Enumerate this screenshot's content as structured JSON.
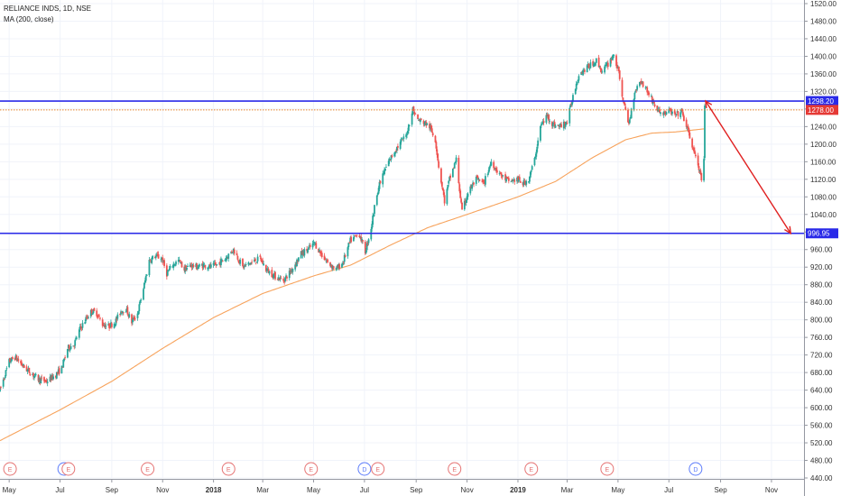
{
  "header": {
    "symbol_line": "RELIANCE INDS, 1D, NSE",
    "indicator_line": "MA (200, close)"
  },
  "colors": {
    "up_candle": "#26a69a",
    "down_candle": "#ef5350",
    "ma_line": "#f7a35c",
    "hline": "#2a2ae8",
    "dotted_line": "#e8842a",
    "arrow": "#e02020",
    "price_tag_current": "#e53935",
    "price_tag_blue": "#2a2ae8",
    "event_e": "#e57373",
    "event_d": "#5c7cfa"
  },
  "chart_data": {
    "type": "candlestick",
    "title": "RELIANCE INDS, 1D, NSE",
    "ylim": [
      440,
      1520
    ],
    "y_ticks": [
      "1520.00",
      "1480.00",
      "1440.00",
      "1400.00",
      "1360.00",
      "1320.00",
      "1280.00",
      "1240.00",
      "1200.00",
      "1160.00",
      "1120.00",
      "1080.00",
      "1040.00",
      "1000.00",
      "960.00",
      "920.00",
      "880.00",
      "840.00",
      "800.00",
      "760.00",
      "720.00",
      "680.00",
      "640.00",
      "600.00",
      "560.00",
      "520.00",
      "480.00",
      "440.00"
    ],
    "x_range": [
      "2017-04-20",
      "2019-12-10"
    ],
    "x_ticks": [
      {
        "label": "May",
        "date": "2017-05-01"
      },
      {
        "label": "Jul",
        "date": "2017-07-01"
      },
      {
        "label": "Sep",
        "date": "2017-09-01"
      },
      {
        "label": "Nov",
        "date": "2017-11-01"
      },
      {
        "label": "2018",
        "date": "2018-01-01"
      },
      {
        "label": "Mar",
        "date": "2018-03-01"
      },
      {
        "label": "May",
        "date": "2018-05-01"
      },
      {
        "label": "Jul",
        "date": "2018-07-01"
      },
      {
        "label": "Sep",
        "date": "2018-09-01"
      },
      {
        "label": "Nov",
        "date": "2018-11-01"
      },
      {
        "label": "2019",
        "date": "2019-01-01"
      },
      {
        "label": "Mar",
        "date": "2019-03-01"
      },
      {
        "label": "May",
        "date": "2019-05-01"
      },
      {
        "label": "Jul",
        "date": "2019-07-01"
      },
      {
        "label": "Sep",
        "date": "2019-09-01"
      },
      {
        "label": "Nov",
        "date": "2019-11-01"
      }
    ],
    "price_anchors": [
      [
        "2017-04-20",
        640
      ],
      [
        "2017-05-01",
        705
      ],
      [
        "2017-05-08",
        715
      ],
      [
        "2017-05-20",
        690
      ],
      [
        "2017-06-05",
        665
      ],
      [
        "2017-06-15",
        660
      ],
      [
        "2017-06-26",
        675
      ],
      [
        "2017-07-03",
        690
      ],
      [
        "2017-07-10",
        735
      ],
      [
        "2017-07-18",
        745
      ],
      [
        "2017-07-25",
        780
      ],
      [
        "2017-08-02",
        805
      ],
      [
        "2017-08-08",
        820
      ],
      [
        "2017-08-14",
        815
      ],
      [
        "2017-08-21",
        790
      ],
      [
        "2017-08-28",
        785
      ],
      [
        "2017-09-05",
        795
      ],
      [
        "2017-09-12",
        820
      ],
      [
        "2017-09-18",
        825
      ],
      [
        "2017-09-25",
        795
      ],
      [
        "2017-10-02",
        815
      ],
      [
        "2017-10-10",
        880
      ],
      [
        "2017-10-16",
        935
      ],
      [
        "2017-10-23",
        945
      ],
      [
        "2017-10-31",
        940
      ],
      [
        "2017-11-06",
        905
      ],
      [
        "2017-11-13",
        925
      ],
      [
        "2017-11-20",
        935
      ],
      [
        "2017-11-27",
        915
      ],
      [
        "2017-12-05",
        925
      ],
      [
        "2017-12-12",
        920
      ],
      [
        "2017-12-20",
        925
      ],
      [
        "2017-12-28",
        920
      ],
      [
        "2018-01-05",
        925
      ],
      [
        "2018-01-15",
        940
      ],
      [
        "2018-01-25",
        960
      ],
      [
        "2018-02-05",
        920
      ],
      [
        "2018-02-15",
        930
      ],
      [
        "2018-02-26",
        940
      ],
      [
        "2018-03-05",
        915
      ],
      [
        "2018-03-15",
        900
      ],
      [
        "2018-03-26",
        890
      ],
      [
        "2018-04-05",
        915
      ],
      [
        "2018-04-16",
        950
      ],
      [
        "2018-04-24",
        960
      ],
      [
        "2018-05-02",
        975
      ],
      [
        "2018-05-10",
        950
      ],
      [
        "2018-05-18",
        930
      ],
      [
        "2018-05-28",
        915
      ],
      [
        "2018-06-05",
        930
      ],
      [
        "2018-06-14",
        980
      ],
      [
        "2018-06-25",
        995
      ],
      [
        "2018-07-02",
        955
      ],
      [
        "2018-07-09",
        1010
      ],
      [
        "2018-07-16",
        1090
      ],
      [
        "2018-07-23",
        1130
      ],
      [
        "2018-07-30",
        1160
      ],
      [
        "2018-08-08",
        1190
      ],
      [
        "2018-08-20",
        1220
      ],
      [
        "2018-08-28",
        1280
      ],
      [
        "2018-09-03",
        1255
      ],
      [
        "2018-09-10",
        1250
      ],
      [
        "2018-09-17",
        1240
      ],
      [
        "2018-09-24",
        1210
      ],
      [
        "2018-09-28",
        1150
      ],
      [
        "2018-10-05",
        1070
      ],
      [
        "2018-10-11",
        1120
      ],
      [
        "2018-10-19",
        1165
      ],
      [
        "2018-10-26",
        1045
      ],
      [
        "2018-11-02",
        1090
      ],
      [
        "2018-11-12",
        1120
      ],
      [
        "2018-11-21",
        1110
      ],
      [
        "2018-11-30",
        1160
      ],
      [
        "2018-12-07",
        1140
      ],
      [
        "2018-12-14",
        1125
      ],
      [
        "2018-12-21",
        1115
      ],
      [
        "2018-12-31",
        1120
      ],
      [
        "2019-01-07",
        1110
      ],
      [
        "2019-01-14",
        1120
      ],
      [
        "2019-01-21",
        1165
      ],
      [
        "2019-01-28",
        1240
      ],
      [
        "2019-02-05",
        1265
      ],
      [
        "2019-02-12",
        1245
      ],
      [
        "2019-02-20",
        1240
      ],
      [
        "2019-03-01",
        1250
      ],
      [
        "2019-03-08",
        1310
      ],
      [
        "2019-03-15",
        1360
      ],
      [
        "2019-03-22",
        1370
      ],
      [
        "2019-03-29",
        1380
      ],
      [
        "2019-04-05",
        1390
      ],
      [
        "2019-04-12",
        1365
      ],
      [
        "2019-04-20",
        1385
      ],
      [
        "2019-04-26",
        1405
      ],
      [
        "2019-05-02",
        1360
      ],
      [
        "2019-05-08",
        1290
      ],
      [
        "2019-05-14",
        1245
      ],
      [
        "2019-05-21",
        1320
      ],
      [
        "2019-05-28",
        1345
      ],
      [
        "2019-06-04",
        1325
      ],
      [
        "2019-06-11",
        1300
      ],
      [
        "2019-06-18",
        1275
      ],
      [
        "2019-06-25",
        1270
      ],
      [
        "2019-07-02",
        1275
      ],
      [
        "2019-07-09",
        1265
      ],
      [
        "2019-07-16",
        1275
      ],
      [
        "2019-07-23",
        1235
      ],
      [
        "2019-07-30",
        1190
      ],
      [
        "2019-08-05",
        1150
      ],
      [
        "2019-08-09",
        1120
      ],
      [
        "2019-08-12",
        1160
      ],
      [
        "2019-08-13",
        1288
      ]
    ],
    "ma200": [
      [
        "2017-04-20",
        525
      ],
      [
        "2017-07-01",
        595
      ],
      [
        "2017-09-01",
        660
      ],
      [
        "2017-11-01",
        735
      ],
      [
        "2018-01-01",
        805
      ],
      [
        "2018-03-01",
        860
      ],
      [
        "2018-05-01",
        900
      ],
      [
        "2018-06-15",
        925
      ],
      [
        "2018-08-01",
        970
      ],
      [
        "2018-09-15",
        1010
      ],
      [
        "2018-11-01",
        1040
      ],
      [
        "2019-01-01",
        1080
      ],
      [
        "2019-02-15",
        1115
      ],
      [
        "2019-04-01",
        1170
      ],
      [
        "2019-05-10",
        1210
      ],
      [
        "2019-06-10",
        1225
      ],
      [
        "2019-07-10",
        1228
      ],
      [
        "2019-08-13",
        1235
      ]
    ],
    "hlines": [
      {
        "value": 1298.2,
        "label": "1298.20",
        "style": "solid-blue"
      },
      {
        "value": 1278.0,
        "label": "1278.00",
        "style": "dotted-orange"
      },
      {
        "value": 996.95,
        "label": "996.95",
        "style": "solid-blue"
      }
    ],
    "arrow": {
      "from": [
        "2019-08-14",
        1298.2
      ],
      "to": [
        "2019-11-24",
        996.95
      ]
    },
    "events": [
      {
        "type": "E",
        "date": "2017-05-02"
      },
      {
        "type": "D",
        "date": "2017-07-06"
      },
      {
        "type": "E",
        "date": "2017-07-11"
      },
      {
        "type": "E",
        "date": "2017-10-14"
      },
      {
        "type": "E",
        "date": "2018-01-19"
      },
      {
        "type": "E",
        "date": "2018-04-28"
      },
      {
        "type": "D",
        "date": "2018-07-01"
      },
      {
        "type": "E",
        "date": "2018-07-17"
      },
      {
        "type": "E",
        "date": "2018-10-17"
      },
      {
        "type": "E",
        "date": "2019-01-17"
      },
      {
        "type": "E",
        "date": "2019-04-18"
      },
      {
        "type": "D",
        "date": "2019-08-02"
      }
    ]
  }
}
